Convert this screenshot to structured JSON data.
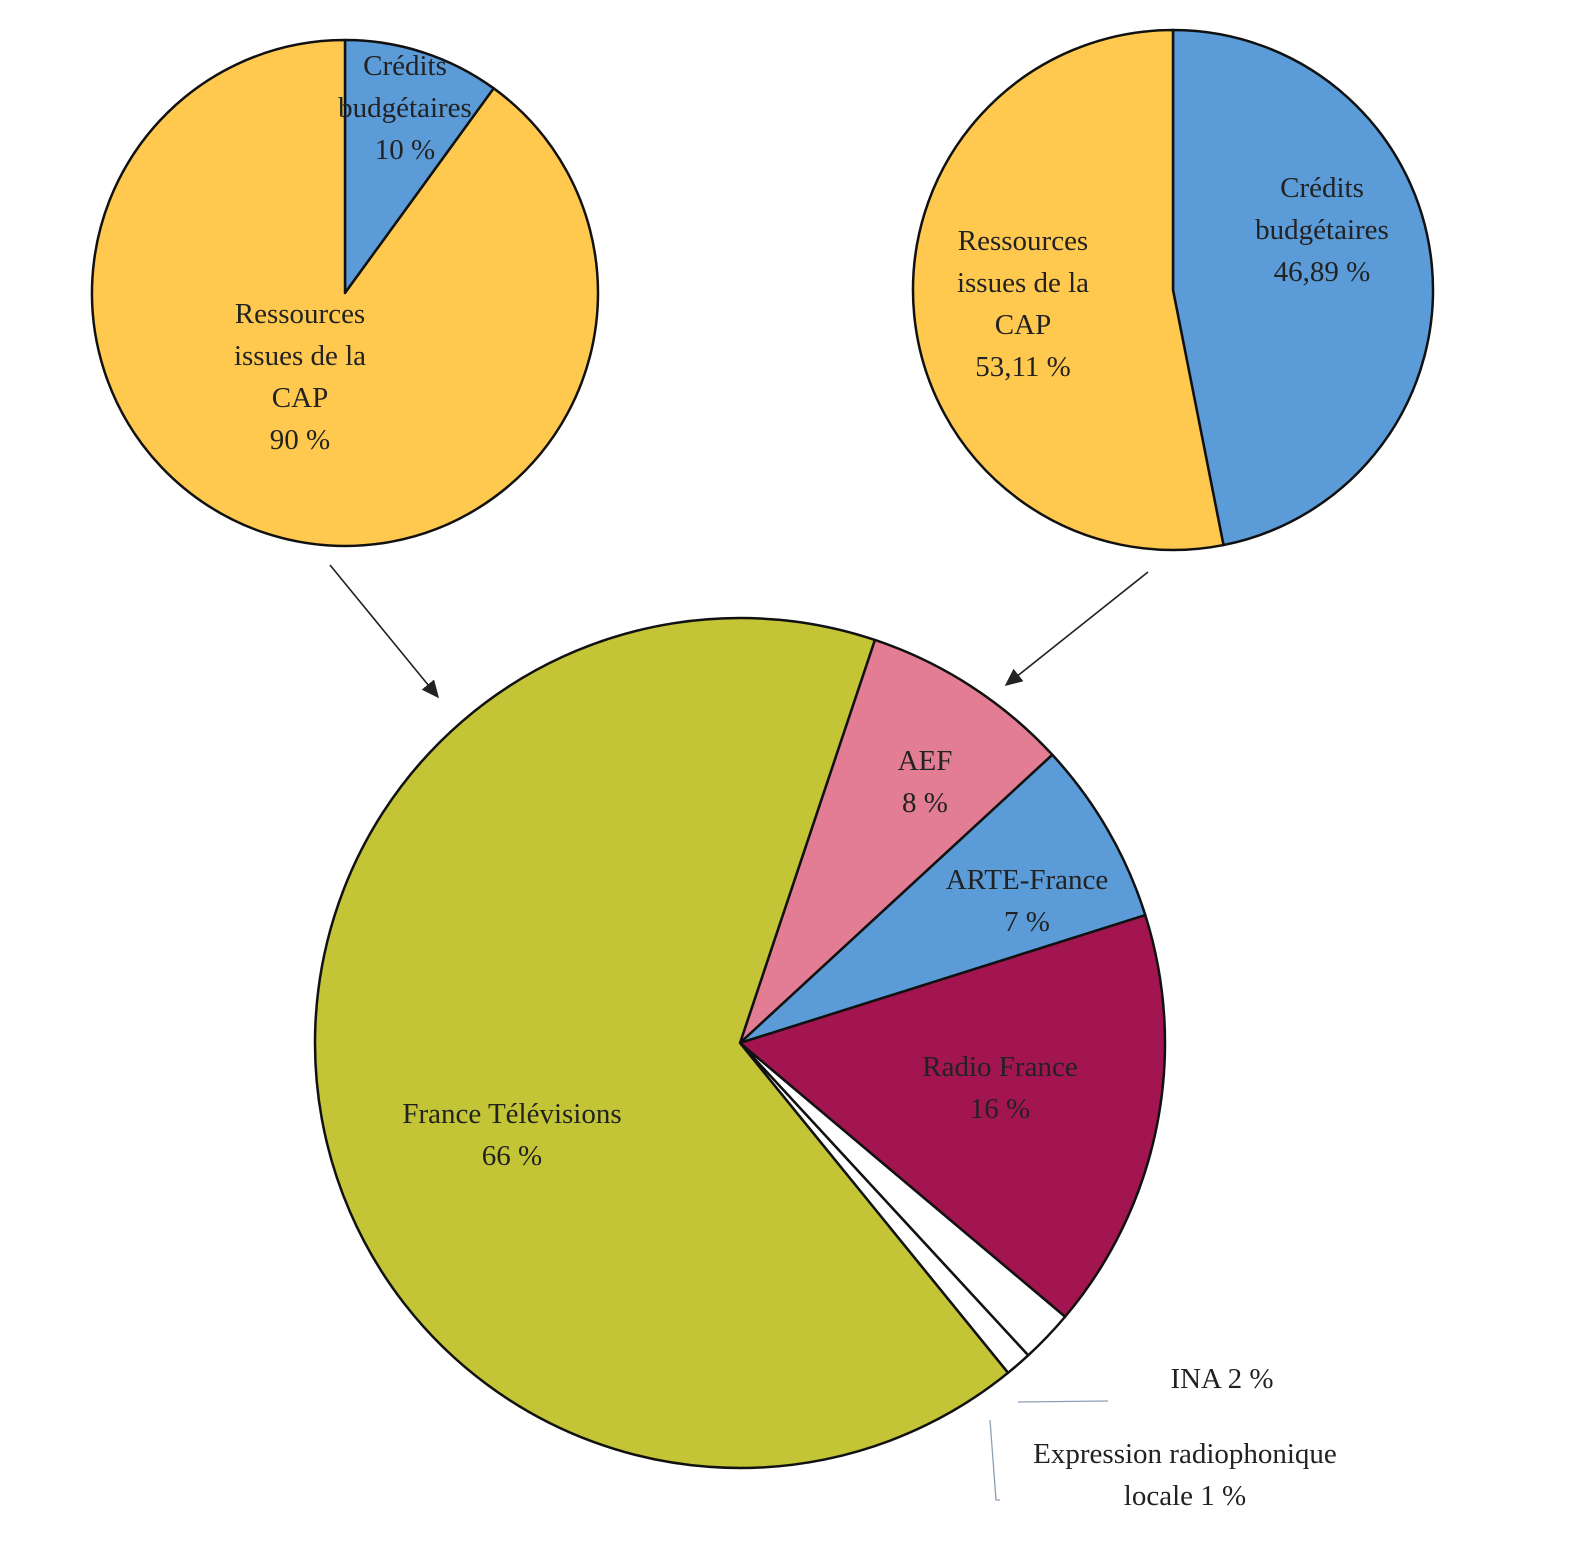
{
  "chart_data": [
    {
      "type": "pie",
      "id": "funding-left",
      "slices": [
        {
          "label": [
            "Crédits",
            "budgétaires"
          ],
          "value_label": "10 %",
          "value": 10,
          "color": "#5B9BD8"
        },
        {
          "label": [
            "Ressources",
            "issues de la",
            "CAP"
          ],
          "value_label": "90 %",
          "value": 90,
          "color": "#FFC94F"
        }
      ]
    },
    {
      "type": "pie",
      "id": "funding-right",
      "slices": [
        {
          "label": [
            "Crédits",
            "budgétaires"
          ],
          "value_label": "46,89 %",
          "value": 46.89,
          "color": "#5B9BD8"
        },
        {
          "label": [
            "Ressources",
            "issues de la",
            "CAP"
          ],
          "value_label": "53,11 %",
          "value": 53.11,
          "color": "#FFC94F"
        }
      ]
    },
    {
      "type": "pie",
      "id": "allocation",
      "slices": [
        {
          "label": [
            "AEF"
          ],
          "value_label": "8 %",
          "value": 8,
          "color": "#E37D94"
        },
        {
          "label": [
            "ARTE-France"
          ],
          "value_label": "7 %",
          "value": 7,
          "color": "#5B9BD8"
        },
        {
          "label": [
            "Radio France"
          ],
          "value_label": "16 %",
          "value": 16,
          "color": "#A31550"
        },
        {
          "label": [
            "INA"
          ],
          "value_label": "2 %",
          "value": 2,
          "color": "#FFFFFF"
        },
        {
          "label": [
            "Expression radiophonique",
            "locale"
          ],
          "value_label": "1 %",
          "value": 1,
          "color": "#FFFFFF"
        },
        {
          "label": [
            "France Télévisions"
          ],
          "value_label": "66 %",
          "value": 66,
          "color": "#C3C436"
        }
      ]
    }
  ]
}
